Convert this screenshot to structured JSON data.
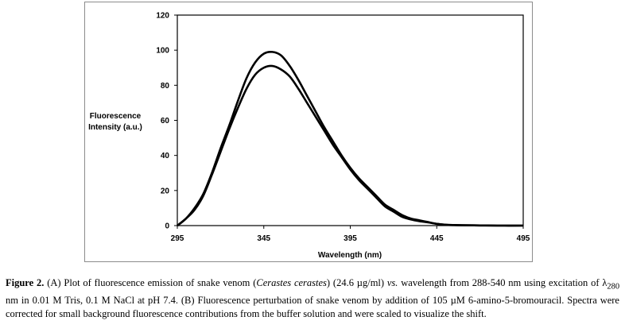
{
  "chart_data": {
    "type": "line",
    "title": "",
    "xlabel": "Wavelength (nm)",
    "ylabel": [
      "Fluorescence",
      "Intensity (a.u.)"
    ],
    "xlim": [
      295,
      495
    ],
    "ylim": [
      0,
      120
    ],
    "x_ticks": [
      "295",
      "345",
      "395",
      "445",
      "495"
    ],
    "y_ticks": [
      "0",
      "20",
      "40",
      "60",
      "80",
      "100",
      "120"
    ],
    "grid": false,
    "legend": "none",
    "series": [
      {
        "color": "#000000",
        "x": [
          295,
          300,
          305,
          310,
          315,
          320,
          325,
          330,
          335,
          340,
          345,
          350,
          355,
          360,
          365,
          370,
          375,
          380,
          385,
          390,
          395,
          400,
          405,
          410,
          415,
          420,
          425,
          430,
          435,
          440,
          445,
          450,
          455,
          460,
          470,
          480,
          495
        ],
        "y": [
          0,
          4,
          10,
          18,
          30,
          44,
          57,
          71,
          84,
          93,
          98,
          99,
          97,
          91,
          83,
          74,
          65,
          56,
          48,
          40,
          33,
          27,
          22,
          17,
          12,
          9,
          6,
          4,
          3,
          2,
          1,
          0.5,
          0.3,
          0.2,
          0.1,
          0,
          0
        ]
      },
      {
        "color": "#000000",
        "x": [
          295,
          300,
          305,
          310,
          315,
          320,
          325,
          330,
          335,
          340,
          345,
          350,
          355,
          360,
          365,
          370,
          375,
          380,
          385,
          390,
          395,
          400,
          405,
          410,
          415,
          420,
          425,
          430,
          435,
          440,
          445,
          450,
          455,
          460,
          470,
          480,
          495
        ],
        "y": [
          0,
          4,
          9,
          17,
          29,
          42,
          55,
          67,
          78,
          86,
          90,
          91,
          89,
          85,
          78,
          70,
          62,
          54,
          46,
          39,
          32,
          26,
          21,
          16,
          11,
          8,
          5,
          3.5,
          2.5,
          1.8,
          1,
          0.5,
          0.3,
          0.2,
          0.1,
          0,
          0
        ]
      }
    ]
  },
  "caption": {
    "label": "Figure 2.",
    "t1": " (A) Plot of fluorescence emission of snake venom (",
    "species": "Cerastes cerastes",
    "t2": ") (24.6 µg/ml) ",
    "vs": "vs.",
    "t3": " wavelength from 288-540 nm using excitation of λ",
    "sub": "280",
    "t4": " nm in 0.01 M Tris, 0.1 M NaCl at pH 7.4. (B) Fluorescence perturbation of snake venom by addition of 105 µM 6-amino-5-bromouracil. Spectra were corrected for small background fluorescence contributions from the buffer solution and were scaled to visualize the shift."
  }
}
